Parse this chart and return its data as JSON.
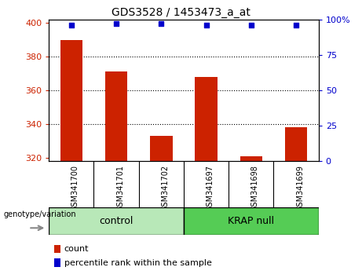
{
  "title": "GDS3528 / 1453473_a_at",
  "categories": [
    "GSM341700",
    "GSM341701",
    "GSM341702",
    "GSM341697",
    "GSM341698",
    "GSM341699"
  ],
  "bar_values": [
    390,
    371,
    333,
    368,
    321,
    338
  ],
  "percentile_values": [
    96,
    97,
    97,
    96,
    96,
    96
  ],
  "bar_color": "#cc2200",
  "percentile_color": "#0000cc",
  "ylim_left": [
    318,
    402
  ],
  "ylim_right": [
    0,
    100
  ],
  "yticks_left": [
    320,
    340,
    360,
    380,
    400
  ],
  "yticks_right": [
    0,
    25,
    50,
    75,
    100
  ],
  "ytick_labels_right": [
    "0",
    "25",
    "50",
    "75",
    "100%"
  ],
  "grid_values": [
    340,
    360,
    380
  ],
  "control_label": "control",
  "krap_label": "KRAP null",
  "group_label": "genotype/variation",
  "legend_count": "count",
  "legend_percentile": "percentile rank within the sample",
  "bar_width": 0.5,
  "tick_label_color_left": "#cc2200",
  "tick_label_color_right": "#0000cc",
  "bar_bottom": 318,
  "gray_bg": "#d3d3d3",
  "green_bg_ctrl": "#aaddaa",
  "green_bg_krap": "#66cc66",
  "plot_bg": "#ffffff"
}
